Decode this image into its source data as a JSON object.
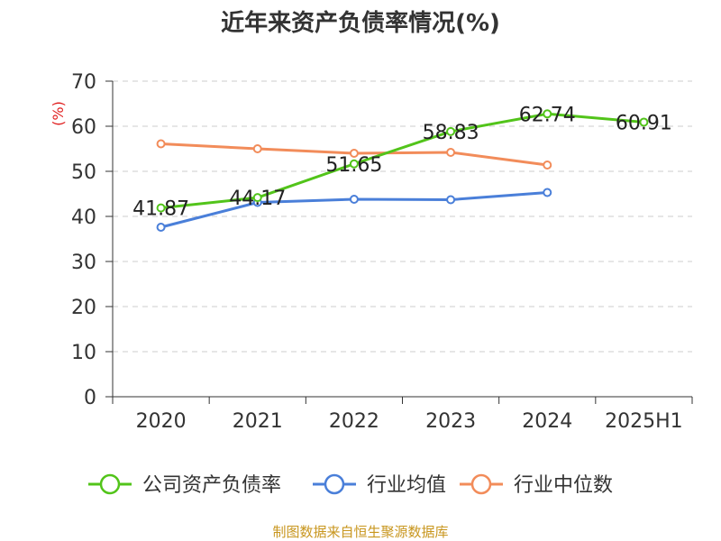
{
  "chart_data": {
    "type": "line",
    "title": "近年来资产负债率情况(%)",
    "ylabel": "(%)",
    "xlabel": "",
    "categories": [
      "2020",
      "2021",
      "2022",
      "2023",
      "2024",
      "2025H1"
    ],
    "ylim": [
      0,
      70
    ],
    "yticks": [
      "0",
      "10",
      "20",
      "30",
      "40",
      "50",
      "60",
      "70"
    ],
    "grid": true,
    "legend_position": "bottom",
    "series": [
      {
        "name": "公司资产负债率",
        "color": "#52c41a",
        "values": [
          41.87,
          44.17,
          51.65,
          58.83,
          62.74,
          60.91
        ],
        "labels": [
          "41.87",
          "44.17",
          "51.65",
          "58.83",
          "62.74",
          "60.91"
        ]
      },
      {
        "name": "行业均值",
        "color": "#4a7fd9",
        "values": [
          37.6,
          43.1,
          43.8,
          43.7,
          45.3,
          null
        ]
      },
      {
        "name": "行业中位数",
        "color": "#f28c5a",
        "values": [
          56.1,
          55.0,
          54.0,
          54.2,
          51.4,
          null
        ]
      }
    ]
  },
  "source": {
    "text": "制图数据来自恒生聚源数据库",
    "color": "#c8961e"
  }
}
